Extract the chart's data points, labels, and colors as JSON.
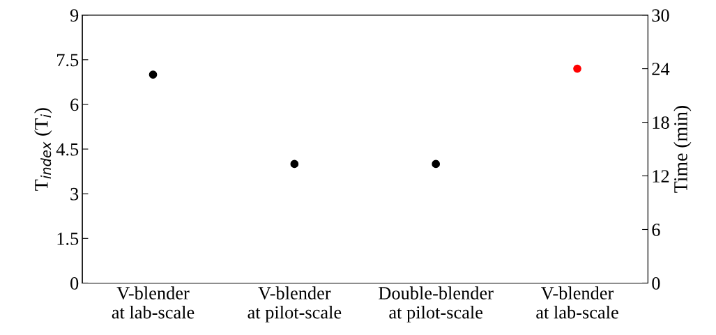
{
  "chart_data": {
    "type": "scatter",
    "ylabel": "T$_{index}$ (T$_{i}$)",
    "y2label": "Time (min)",
    "categories": [
      "V-blender\nat lab-scale",
      "V-blender\nat pilot-scale",
      "Double-blender\nat pilot-scale",
      "V-blender\nat lab-scale"
    ],
    "series": [
      {
        "color": "#000000",
        "values": [
          7.0,
          4.0,
          4.0,
          null
        ]
      },
      {
        "color": "#ff0000",
        "values": [
          null,
          null,
          null,
          24
        ],
        "axis": "y2"
      }
    ],
    "ylim": [
      0,
      9
    ],
    "yticks": [
      0,
      1.5,
      3,
      4.5,
      6,
      7.5,
      9
    ],
    "y2lim": [
      0,
      30
    ],
    "y2ticks": [
      0,
      6,
      12,
      18,
      24,
      30
    ],
    "marker": "circle",
    "grid": false,
    "legend": false
  }
}
